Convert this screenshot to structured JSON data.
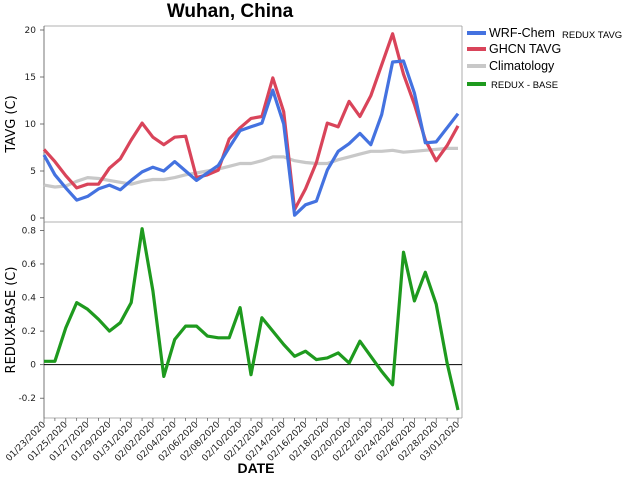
{
  "chart_data": [
    {
      "type": "line",
      "title": "Wuhan, China",
      "ylabel": "TAVG (C)",
      "ylim": [
        0,
        20
      ],
      "yticks": [
        0,
        5,
        10,
        15,
        20
      ],
      "legend_position": "top-right",
      "series": [
        {
          "name": "WRF-Chem",
          "name_suffix": "REDUX TAVG",
          "color": "#4472e0",
          "values": [
            6.7,
            4.6,
            3.2,
            1.9,
            2.3,
            3.1,
            3.5,
            3.0,
            4.0,
            4.9,
            5.4,
            5.0,
            6.0,
            5.0,
            4.0,
            4.8,
            5.6,
            7.5,
            9.3,
            9.7,
            10.1,
            13.6,
            10.0,
            0.3,
            1.4,
            1.8,
            5.1,
            7.1,
            7.9,
            9.0,
            7.8,
            11.0,
            16.6,
            16.7,
            13.3,
            8.0,
            8.1,
            9.6,
            11.1
          ]
        },
        {
          "name": "GHCN TAVG",
          "color": "#d9445a",
          "values": [
            7.3,
            6.0,
            4.5,
            3.2,
            3.6,
            3.6,
            5.3,
            6.3,
            8.3,
            10.1,
            8.6,
            7.8,
            8.6,
            8.7,
            4.3,
            4.6,
            5.1,
            8.4,
            9.6,
            10.6,
            10.8,
            14.9,
            11.3,
            0.9,
            3.1,
            5.9,
            10.1,
            9.7,
            12.4,
            10.8,
            13.0,
            16.3,
            19.6,
            15.3,
            12.1,
            8.3,
            6.1,
            7.7,
            9.8
          ]
        },
        {
          "name": "Climatology",
          "color": "#c8c8c8",
          "values": [
            3.5,
            3.3,
            3.4,
            3.9,
            4.3,
            4.2,
            4.0,
            3.8,
            3.6,
            3.9,
            4.1,
            4.1,
            4.3,
            4.6,
            4.8,
            5.0,
            5.2,
            5.5,
            5.8,
            5.8,
            6.1,
            6.5,
            6.5,
            6.1,
            5.9,
            5.8,
            5.8,
            6.2,
            6.5,
            6.8,
            7.1,
            7.1,
            7.2,
            7.0,
            7.1,
            7.2,
            7.3,
            7.4,
            7.4
          ]
        }
      ]
    },
    {
      "type": "line",
      "ylabel": "REDUX-BASE (C)",
      "xlabel": "DATE",
      "ylim": [
        -0.3,
        0.85
      ],
      "yticks": [
        -0.2,
        0,
        0.2,
        0.4,
        0.6,
        0.8
      ],
      "zero_line": true,
      "x_tick_labels": [
        "01/23/2020",
        "01/25/2020",
        "01/27/2020",
        "01/29/2020",
        "01/31/2020",
        "02/02/2020",
        "02/04/2020",
        "02/06/2020",
        "02/08/2020",
        "02/10/2020",
        "02/12/2020",
        "02/14/2020",
        "02/16/2020",
        "02/18/2020",
        "02/20/2020",
        "02/22/2020",
        "02/24/2020",
        "02/26/2020",
        "02/28/2020",
        "03/01/2020"
      ],
      "series": [
        {
          "name": "REDUX - BASE",
          "color": "#1e9a1e",
          "values": [
            0.02,
            0.02,
            0.22,
            0.37,
            0.33,
            0.27,
            0.2,
            0.25,
            0.37,
            0.81,
            0.44,
            -0.07,
            0.15,
            0.23,
            0.23,
            0.17,
            0.16,
            0.16,
            0.34,
            -0.06,
            0.28,
            0.2,
            0.12,
            0.05,
            0.08,
            0.03,
            0.04,
            0.07,
            0.01,
            0.14,
            0.05,
            -0.04,
            -0.12,
            0.67,
            0.38,
            0.55,
            0.36,
            0.01,
            -0.27
          ]
        }
      ]
    }
  ]
}
